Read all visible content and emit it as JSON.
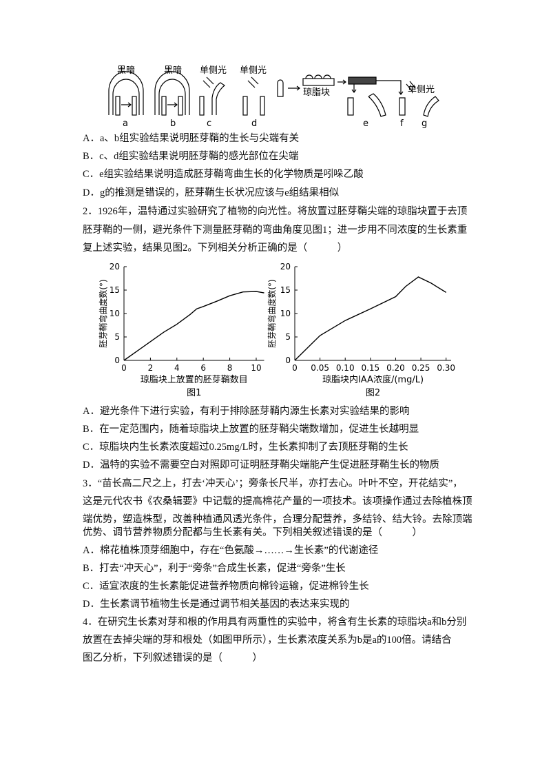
{
  "diagram": {
    "labels": [
      "黑暗",
      "黑暗",
      "单侧光",
      "单侧光",
      "琼脂块",
      "单侧光"
    ],
    "letters": [
      "a",
      "b",
      "c",
      "d",
      "e",
      "f",
      "g"
    ]
  },
  "q1": {
    "options": [
      "A．a、b组实验结果说明胚芽鞘的生长与尖端有关",
      "B．c、d组实验结果说明胚芽鞘的感光部位在尖端",
      "C．e组实验结果说明造成胚芽鞘弯曲生长的化学物质是吲哚乙酸",
      "D．g的推测是错误的，胚芽鞘生长状况应该与e组结果相似"
    ]
  },
  "q2": {
    "stem": [
      "2．1926年，温特通过实验研究了植物的向光性。将放置过胚芽鞘尖端的琼脂块置于去顶",
      "胚芽鞘的一侧，避光条件下测量胚芽鞘的弯曲角度见图1；进一步用不同浓度的生长素重",
      "复上述实验，结果见图2。下列相关分析正确的是（　　　）"
    ],
    "options": [
      "A．避光条件下进行实验，有利于排除胚芽鞘内源生长素对实验结果的影响",
      "B．在一定范围内，随着琼脂块上放置的胚芽鞘尖端数增加，促进生长越明显",
      "C．琼脂块内生长素浓度超过0.25mg/L时，生长素抑制了去顶胚芽鞘的生长",
      "D．温特的实验不需要空白对照即可证明胚芽鞘尖端能产生促进胚芽鞘生长的物质"
    ]
  },
  "chart_data": [
    {
      "type": "line",
      "caption": "图1",
      "x_label": "琼脂块上放置的胚芽鞘数目",
      "y_label": "胚芽鞘弯曲度数(°)",
      "x": [
        0,
        1,
        2,
        3,
        4,
        5,
        5.5,
        6,
        7,
        8,
        9,
        10,
        10.6
      ],
      "values": [
        0,
        2,
        4,
        6,
        7.7,
        9.8,
        11,
        11.5,
        12.6,
        13.8,
        14.6,
        14.7,
        14.4
      ],
      "xlim": [
        0,
        10.6
      ],
      "ylim": [
        0,
        20
      ],
      "xticks": [
        0,
        2,
        4,
        6,
        8,
        10
      ],
      "yticks": [
        0,
        5,
        10,
        15,
        20
      ],
      "color": "#000000"
    },
    {
      "type": "line",
      "caption": "图2",
      "x_label": "琼脂块内IAA浓度/(mg/L)",
      "y_label": "胚芽鞘弯曲度数(°)",
      "x": [
        0,
        0.05,
        0.1,
        0.15,
        0.2,
        0.22,
        0.245,
        0.27,
        0.3
      ],
      "values": [
        0,
        5.3,
        8.5,
        11,
        13.6,
        15.8,
        17.8,
        16.5,
        14.5
      ],
      "xlim": [
        0,
        0.31
      ],
      "ylim": [
        0,
        20
      ],
      "xticks": [
        0,
        0.05,
        {
          "value": 0.1,
          "label": "0.10"
        },
        0.15,
        {
          "value": 0.2,
          "label": "0.20"
        },
        0.25,
        {
          "value": 0.3,
          "label": "0.30"
        }
      ],
      "yticks": [
        0,
        5,
        10,
        15,
        20
      ],
      "color": "#000000"
    }
  ],
  "q3": {
    "stem": [
      "3．“苗长高二尺之上，打去‘冲天心’；旁条长尺半，亦打去心。叶叶不空，开花结实”，",
      "这是元代农书《农桑辑要》中记载的提高棉花产量的一项技术。该项操作通过去除植株顶",
      "端优势，塑造株型，改善种植通风透光条件，合理分配营养，多结铃、结大铃。去除顶端",
      "优势、调节营养物质分配都与生长素有关。下列相关叙述错误的是（　　　）"
    ],
    "options": [
      "A．棉花植株顶芽细胞中，存在“色氨酸→……→生长素”的代谢途径",
      "B．打去“冲天心”，利于“旁条”合成生长素，促进“旁条”生长",
      "C．适宜浓度的生长素能促进营养物质向棉铃运输，促进棉铃生长",
      "D．生长素调节植物生长是通过调节相关基因的表达来实现的"
    ]
  },
  "q4": {
    "stem": [
      "4．在研究生长素对芽和根的作用具有两重性的实验中，将含有生长素的琼脂块a和b分别",
      "放置在去掉尖端的芽和根处（如图甲所示），生长素浓度关系为b是a的100倍。请结合",
      "图乙分析，下列叙述错误的是（　　　）"
    ]
  }
}
